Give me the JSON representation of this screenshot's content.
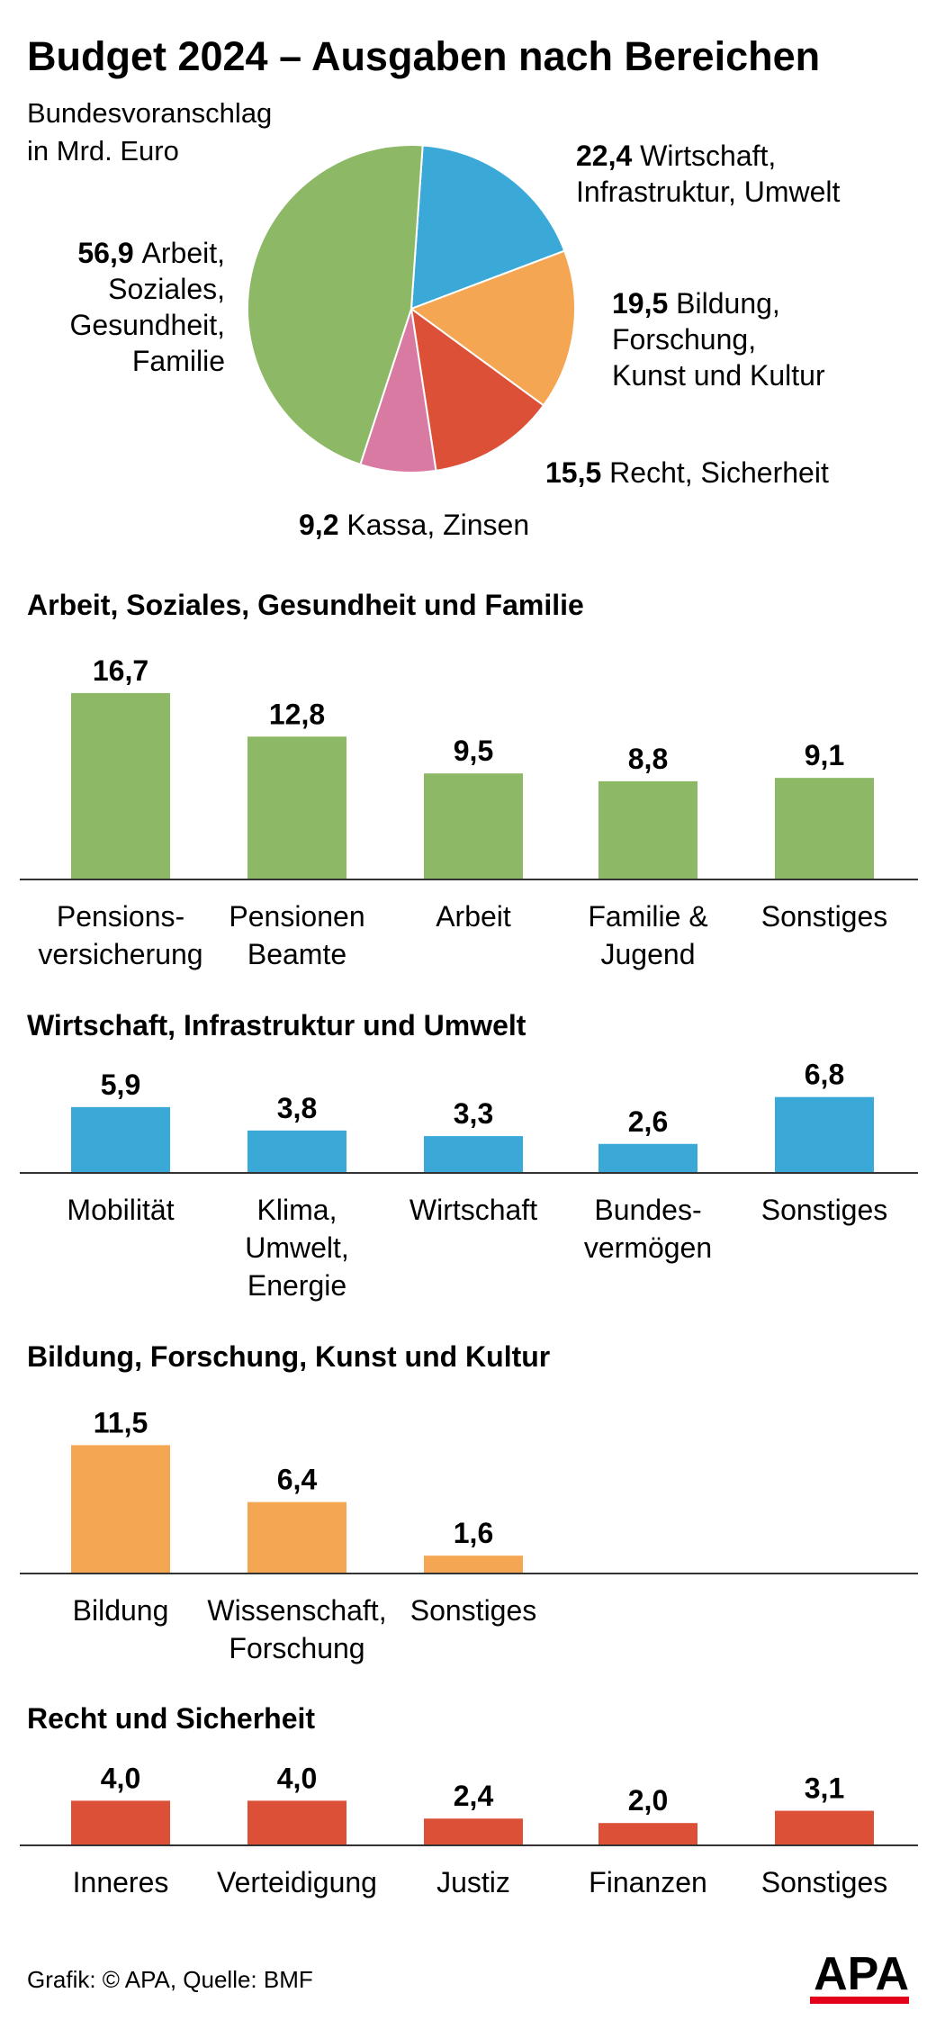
{
  "title": "Budget 2024 – Ausgaben nach Bereichen",
  "subtitle": [
    "Bundesvoranschlag",
    "in Mrd. Euro"
  ],
  "footer": "Grafik: © APA, Quelle: BMF",
  "logo": "APA",
  "colors": {
    "green": "#8db865",
    "blue": "#3aa9d8",
    "orange": "#f5a653",
    "red": "#dd5038",
    "pink": "#d97aa3",
    "axis": "#333333"
  },
  "chart_data": [
    {
      "type": "pie",
      "title": "Budget 2024 – Ausgaben nach Bereichen",
      "subtitle": "Bundesvoranschlag in Mrd. Euro",
      "slices": [
        {
          "value": 22.4,
          "value_label": "22,4",
          "label": [
            "Wirtschaft,",
            "Infrastruktur, Umwelt"
          ],
          "color": "#3aa9d8"
        },
        {
          "value": 19.5,
          "value_label": "19,5",
          "label": [
            "Bildung,",
            "Forschung,",
            "Kunst und Kultur"
          ],
          "color": "#f5a653"
        },
        {
          "value": 15.5,
          "value_label": "15,5",
          "label": [
            "Recht, Sicherheit"
          ],
          "color": "#dd5038"
        },
        {
          "value": 9.2,
          "value_label": "9,2",
          "label": [
            "Kassa, Zinsen"
          ],
          "color": "#d97aa3"
        },
        {
          "value": 56.9,
          "value_label": "56,9",
          "label": [
            "Arbeit,",
            "Soziales,",
            "Gesundheit,",
            "Familie"
          ],
          "color": "#8db865"
        }
      ]
    },
    {
      "type": "bar",
      "title": "Arbeit, Soziales, Gesundheit und Familie",
      "color": "#8db865",
      "categories": [
        [
          "Pensions-",
          "versicherung"
        ],
        [
          "Pensionen",
          "Beamte"
        ],
        [
          "Arbeit"
        ],
        [
          "Familie &",
          "Jugend"
        ],
        [
          "Sonstiges"
        ]
      ],
      "values": [
        16.7,
        12.8,
        9.5,
        8.8,
        9.1
      ],
      "value_labels": [
        "16,7",
        "12,8",
        "9,5",
        "8,8",
        "9,1"
      ]
    },
    {
      "type": "bar",
      "title": "Wirtschaft, Infrastruktur und Umwelt",
      "color": "#3aa9d8",
      "categories": [
        [
          "Mobilität"
        ],
        [
          "Klima,",
          "Umwelt,",
          "Energie"
        ],
        [
          "Wirtschaft"
        ],
        [
          "Bundes-",
          "vermögen"
        ],
        [
          "Sonstiges"
        ]
      ],
      "values": [
        5.9,
        3.8,
        3.3,
        2.6,
        6.8
      ],
      "value_labels": [
        "5,9",
        "3,8",
        "3,3",
        "2,6",
        "6,8"
      ]
    },
    {
      "type": "bar",
      "title": "Bildung, Forschung, Kunst und Kultur",
      "color": "#f5a653",
      "categories": [
        [
          "Bildung"
        ],
        [
          "Wissenschaft,",
          "Forschung"
        ],
        [
          "Sonstiges"
        ]
      ],
      "values": [
        11.5,
        6.4,
        1.6
      ],
      "value_labels": [
        "11,5",
        "6,4",
        "1,6"
      ]
    },
    {
      "type": "bar",
      "title": "Recht und Sicherheit",
      "color": "#dd5038",
      "categories": [
        [
          "Inneres"
        ],
        [
          "Verteidigung"
        ],
        [
          "Justiz"
        ],
        [
          "Finanzen"
        ],
        [
          "Sonstiges"
        ]
      ],
      "values": [
        4.0,
        4.0,
        2.4,
        2.0,
        3.1
      ],
      "value_labels": [
        "4,0",
        "4,0",
        "2,4",
        "2,0",
        "3,1"
      ]
    }
  ]
}
